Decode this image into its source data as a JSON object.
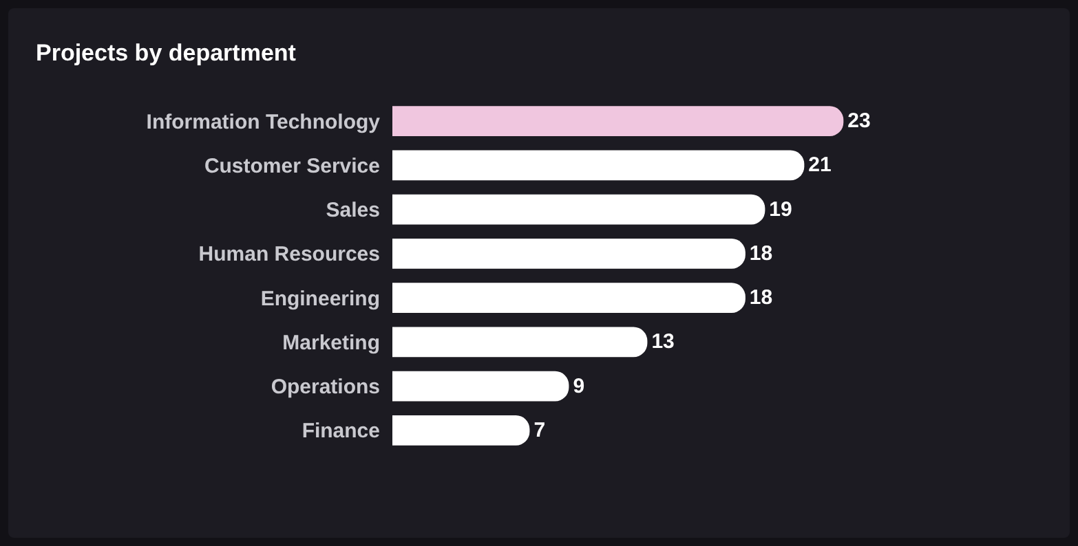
{
  "chart_data": {
    "type": "bar",
    "orientation": "horizontal",
    "title": "Projects by department",
    "categories": [
      "Information Technology",
      "Customer Service",
      "Sales",
      "Human Resources",
      "Engineering",
      "Marketing",
      "Operations",
      "Finance"
    ],
    "values": [
      23,
      21,
      19,
      18,
      18,
      13,
      9,
      7
    ],
    "colors": [
      "#f0c6df",
      "#ffffff",
      "#ffffff",
      "#ffffff",
      "#ffffff",
      "#ffffff",
      "#ffffff",
      "#ffffff"
    ],
    "data_labels": true,
    "grid": false,
    "legend": false,
    "tick_labels": "y"
  }
}
